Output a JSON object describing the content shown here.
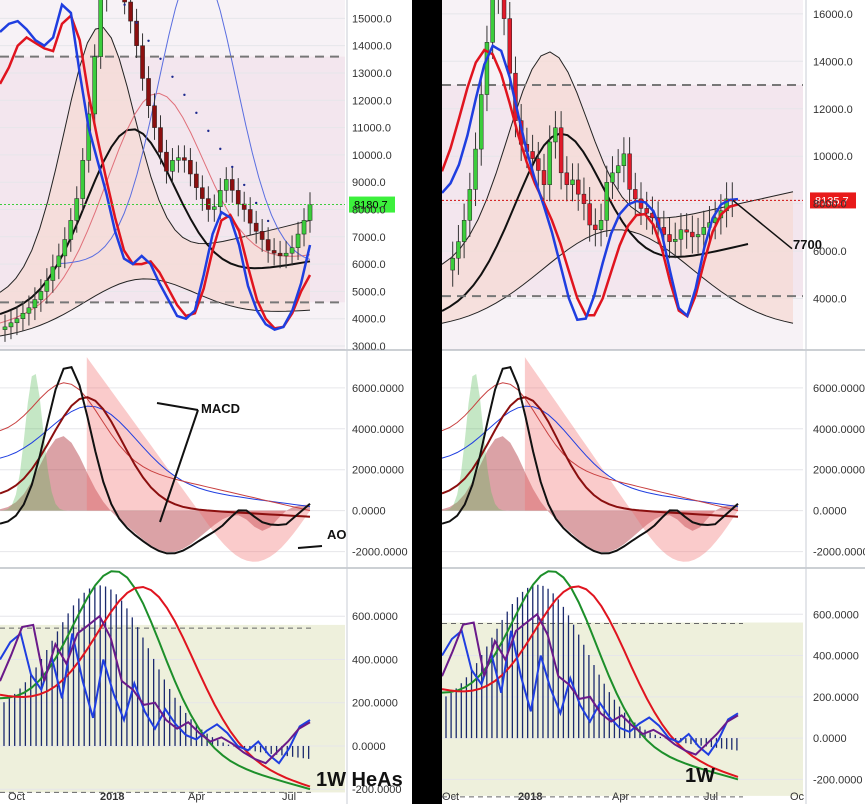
{
  "colors": {
    "bull": "#3ccd3c",
    "bear_heas": "#8b0f0f",
    "bear": "#e11a2a",
    "blue": "#1f3ee0",
    "red": "#e0141f",
    "black": "#111111",
    "purple": "#6a1a8a",
    "green": "#1d8f2a",
    "navy": "#1b2a6e",
    "band": "#f6d9d4",
    "osc_bg": "#eef0dc",
    "divider": "#000000"
  },
  "annotations": {
    "macd": "MACD",
    "ao": "AO",
    "level": "7700",
    "left_timeframe": "1W  HeAs",
    "right_timeframe": "1W"
  },
  "chart_data": [
    {
      "type": "candlestick",
      "panel": "left-price",
      "title": "",
      "yticks": [
        "3000.0",
        "4000.0",
        "5000.0",
        "6000.0",
        "7000.0",
        "8000.0",
        "9000.0",
        "10000.0",
        "11000.0",
        "12000.0",
        "13000.0",
        "14000.0",
        "15000.0"
      ],
      "ylim": [
        3000,
        15600
      ],
      "xticks": [
        "Oct",
        "2018",
        "Apr",
        "Jul"
      ],
      "price_label": "8180.7",
      "dashed_levels": [
        13600,
        4600
      ],
      "series": [
        {
          "name": "",
          "kind": "heikin-ashi",
          "close": [
            3700,
            3850,
            4000,
            4200,
            4400,
            4700,
            5000,
            5400,
            5900,
            6300,
            6900,
            7600,
            8400,
            9800,
            11500,
            13600,
            15700,
            16600,
            16800,
            16300,
            15600,
            14900,
            14000,
            12800,
            11800,
            11000,
            10100,
            9400,
            9800,
            9900,
            9800,
            9300,
            8800,
            8400,
            8000,
            8100,
            8700,
            9100,
            8700,
            8200,
            8000,
            7500,
            7200,
            6900,
            6500,
            6400,
            6300,
            6400,
            6600,
            7100,
            7600,
            8180
          ],
          "open": [
            3600,
            3700,
            3850,
            4000,
            4200,
            4400,
            4700,
            5000,
            5400,
            5900,
            6300,
            6900,
            7600,
            8400,
            9800,
            11500,
            13600,
            15700,
            16600,
            16800,
            16300,
            15600,
            14900,
            14000,
            12800,
            11800,
            11000,
            10100,
            9400,
            9800,
            9900,
            9800,
            9300,
            8800,
            8400,
            8000,
            8100,
            8700,
            9100,
            8700,
            8200,
            8000,
            7500,
            7200,
            6900,
            6500,
            6400,
            6300,
            6400,
            6600,
            7100,
            7600
          ]
        },
        {
          "name": "",
          "kind": "line-blue",
          "values": [
            14500,
            14800,
            14900,
            14600,
            14200,
            14000,
            14300,
            15500,
            15200,
            13000,
            11000,
            9800,
            8600,
            7200,
            6200,
            6000,
            6300,
            6000,
            5300,
            4700,
            4100,
            4000,
            4300,
            5600,
            7100,
            7900,
            7700,
            6700,
            5200,
            4300,
            3800,
            3600,
            3700,
            4300,
            5300,
            6700
          ]
        },
        {
          "name": "",
          "kind": "line-red",
          "values": [
            12600,
            13200,
            14000,
            14300,
            14100,
            13900,
            13800,
            14800,
            15100,
            14200,
            12200,
            10600,
            9100,
            7700,
            6500,
            6000,
            6000,
            6100,
            5700,
            5100,
            4500,
            4100,
            4200,
            5100,
            6500,
            7600,
            7800,
            7200,
            5900,
            4700,
            4000,
            3650,
            3700,
            4200,
            5000,
            5600
          ]
        }
      ]
    },
    {
      "type": "candlestick",
      "panel": "right-price",
      "title": "",
      "yticks": [
        "4000.0",
        "6000.0",
        "8000.0",
        "10000.0",
        "12000.0",
        "14000.0",
        "16000.0"
      ],
      "ylim": [
        2000,
        16500
      ],
      "xticks": [
        "Oct",
        "2018",
        "Apr",
        "Jul",
        "Oc"
      ],
      "price_label": "8135.7",
      "dashed_levels": [
        13000,
        4100
      ],
      "series": []
    },
    {
      "type": "line",
      "panel": "left-macd",
      "title": "",
      "yticks": [
        "-2000.0000",
        "0.0000",
        "2000.0000",
        "4000.0000",
        "6000.0000"
      ],
      "ylim": [
        -2800,
        7800
      ],
      "series": []
    },
    {
      "type": "line",
      "panel": "right-macd",
      "title": "",
      "yticks": [
        "-2000.0000",
        "0.0000",
        "2000.0000",
        "4000.0000",
        "6000.0000"
      ],
      "ylim": [
        -2800,
        7800
      ],
      "series": []
    },
    {
      "type": "line",
      "panel": "left-osc",
      "title": "",
      "yticks": [
        "-200.0000",
        "0.0000",
        "200.0000",
        "400.0000",
        "600.0000"
      ],
      "ylim": [
        -250,
        800
      ],
      "series": []
    },
    {
      "type": "line",
      "panel": "right-osc",
      "title": "",
      "yticks": [
        "-200.0000",
        "0.0000",
        "200.0000",
        "400.0000",
        "600.0000"
      ],
      "ylim": [
        -300,
        800
      ],
      "series": []
    }
  ]
}
